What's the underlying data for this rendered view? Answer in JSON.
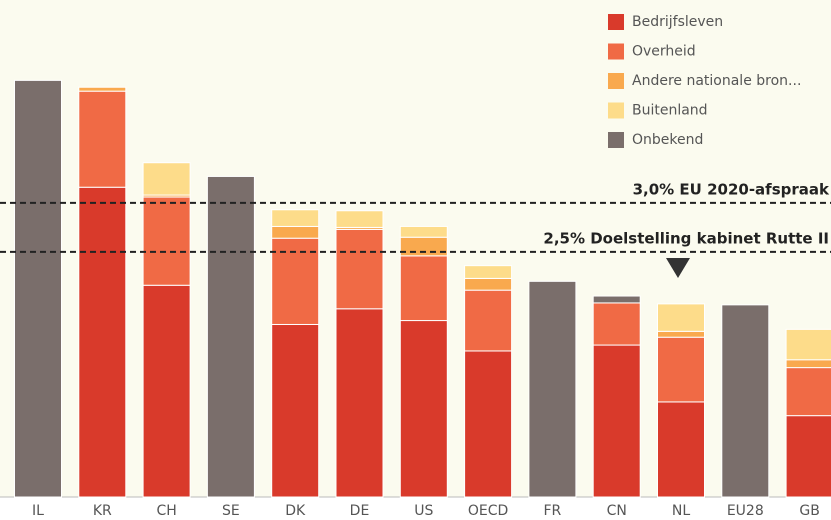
{
  "chart_data": {
    "type": "stacked-bar",
    "categories": [
      "IL",
      "KR",
      "CH",
      "SE",
      "DK",
      "DE",
      "US",
      "OECD",
      "FR",
      "CN",
      "NL",
      "EU28",
      "GB"
    ],
    "series": [
      {
        "name": "Bedrijfsleven",
        "color": "#d93a2b",
        "values": [
          null,
          3.16,
          2.16,
          null,
          1.76,
          1.92,
          1.8,
          1.49,
          null,
          1.55,
          0.97,
          null,
          0.83
        ]
      },
      {
        "name": "Overheid",
        "color": "#f06a45",
        "values": [
          null,
          0.98,
          0.9,
          null,
          0.88,
          0.81,
          0.66,
          0.62,
          null,
          0.43,
          0.66,
          null,
          0.49
        ]
      },
      {
        "name": "Andere nationale bron...",
        "color": "#f9a94e",
        "values": [
          null,
          0.04,
          0.02,
          null,
          0.12,
          0.02,
          0.19,
          0.12,
          null,
          null,
          0.06,
          null,
          0.08
        ]
      },
      {
        "name": "Buitenland",
        "color": "#fddc8a",
        "values": [
          null,
          null,
          0.33,
          null,
          0.17,
          0.17,
          0.11,
          0.13,
          null,
          null,
          0.28,
          null,
          0.31
        ]
      },
      {
        "name": "Onbekend",
        "color": "#7a6e6b",
        "values": [
          4.25,
          null,
          null,
          3.27,
          null,
          null,
          null,
          null,
          2.2,
          0.07,
          null,
          1.96,
          null
        ]
      }
    ],
    "ylim": [
      0,
      5.07
    ],
    "reference_lines": [
      {
        "value": 3.0,
        "label": "3,0% EU 2020-afspraak"
      },
      {
        "value": 2.5,
        "label": "2,5% Doelstelling kabinet Rutte II"
      }
    ]
  }
}
